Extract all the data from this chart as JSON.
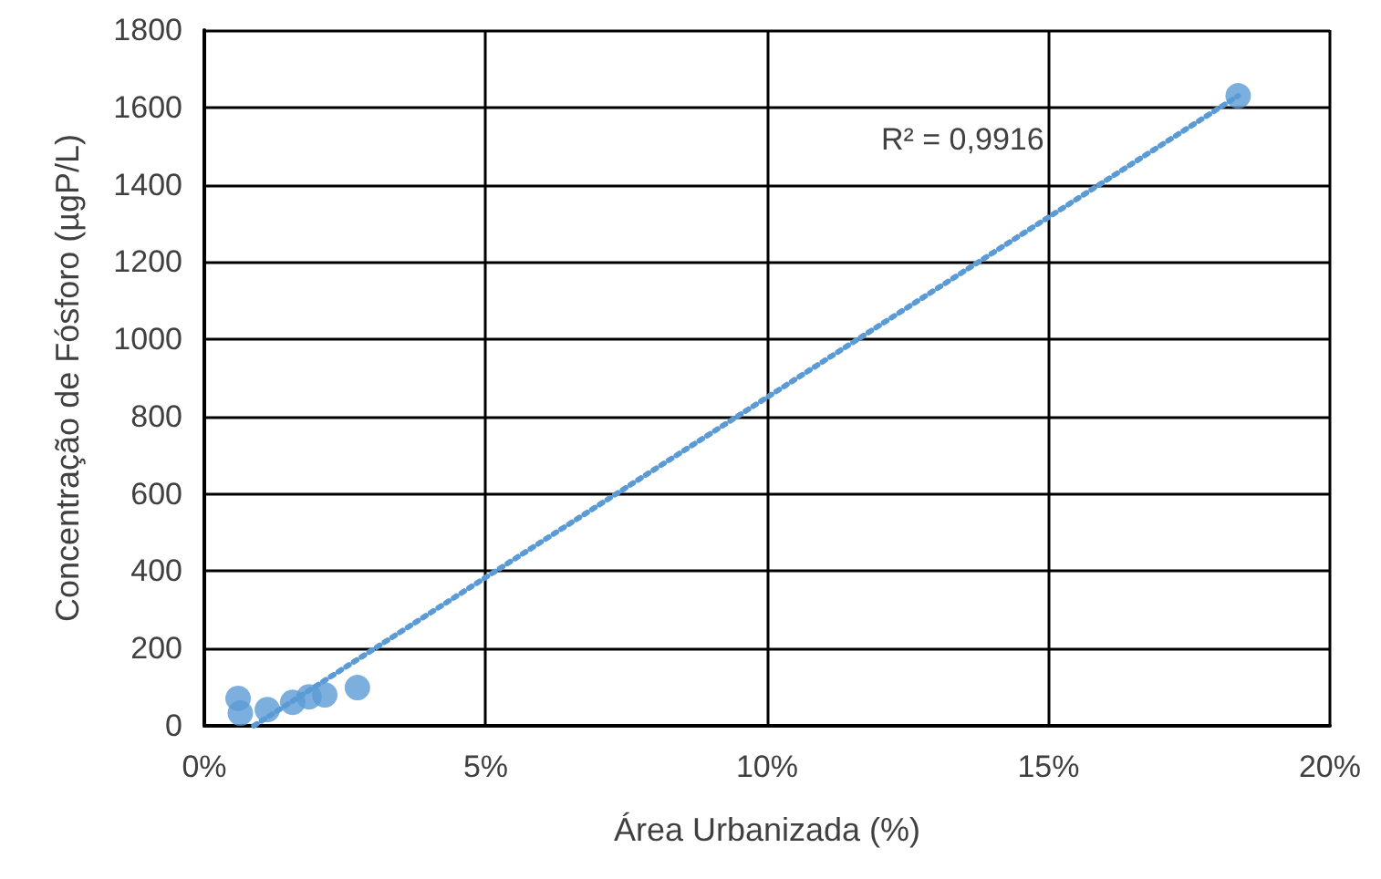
{
  "chart_data": {
    "type": "scatter",
    "xlabel": "Área Urbanizada (%)",
    "ylabel": "Concentração de Fósforo (µgP/L)",
    "series": [
      {
        "color": "#5b9bd5",
        "x": [
          0.6,
          0.64,
          1.12,
          1.57,
          1.86,
          2.14,
          2.72,
          18.37
        ],
        "values": [
          71,
          33,
          42,
          61,
          75,
          80,
          99,
          1630
        ]
      },
      {
        "type": "line",
        "color": "#5b9bd5",
        "line_style": "dotted",
        "marker": "none",
        "x": [
          0.88,
          18.37
        ],
        "values": [
          0,
          1630
        ]
      }
    ],
    "xlim": [
      0,
      20
    ],
    "xticks": [
      {
        "value": 0,
        "label": "0%"
      },
      {
        "value": 5,
        "label": "5%"
      },
      {
        "value": 10,
        "label": "10%"
      },
      {
        "value": 15,
        "label": "15%"
      },
      {
        "value": 20,
        "label": "20%"
      }
    ],
    "ylim": [
      0,
      1800
    ],
    "yticks": [
      0,
      200,
      400,
      600,
      800,
      1000,
      1200,
      1400,
      1600,
      1800
    ],
    "grid": true,
    "marker": "circle",
    "annotations": [
      "R² = 0,9916"
    ]
  }
}
